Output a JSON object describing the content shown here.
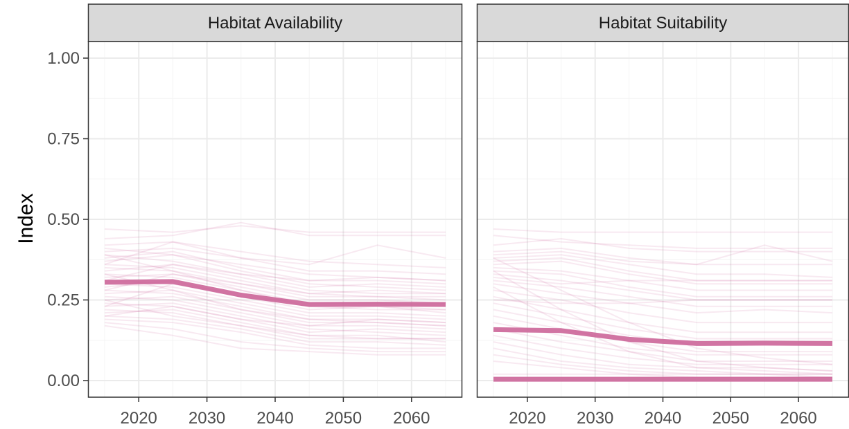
{
  "figure": {
    "ylabel": "Index",
    "colors": {
      "series": "#cc6699",
      "strip_bg": "#d9d9d9",
      "grid_major": "#ebebeb",
      "grid_minor": "#f4f4f4",
      "panel_border": "#333333"
    }
  },
  "chart_data": [
    {
      "type": "line",
      "panel": "Habitat Availability",
      "xlim": [
        2015,
        2065
      ],
      "ylim": [
        0,
        1
      ],
      "xticks": [
        2020,
        2030,
        2040,
        2050,
        2060
      ],
      "yticks": [
        0.0,
        0.25,
        0.5,
        0.75,
        1.0
      ],
      "ytick_labels": [
        "0.00",
        "0.25",
        "0.50",
        "0.75",
        "1.00"
      ],
      "x": [
        2015,
        2025,
        2035,
        2045,
        2055,
        2065
      ],
      "series": [
        {
          "role": "mean",
          "values": [
            0.305,
            0.307,
            0.265,
            0.236,
            0.237,
            0.236
          ]
        },
        {
          "role": "simulation",
          "values": [
            0.42,
            0.43,
            0.4,
            0.37,
            0.36,
            0.35
          ]
        },
        {
          "role": "simulation",
          "values": [
            0.41,
            0.39,
            0.36,
            0.33,
            0.32,
            0.31
          ]
        },
        {
          "role": "simulation",
          "values": [
            0.4,
            0.41,
            0.38,
            0.34,
            0.34,
            0.33
          ]
        },
        {
          "role": "simulation",
          "values": [
            0.39,
            0.37,
            0.33,
            0.29,
            0.3,
            0.29
          ]
        },
        {
          "role": "simulation",
          "values": [
            0.38,
            0.4,
            0.35,
            0.31,
            0.31,
            0.3
          ]
        },
        {
          "role": "simulation",
          "values": [
            0.37,
            0.39,
            0.34,
            0.3,
            0.29,
            0.28
          ]
        },
        {
          "role": "simulation",
          "values": [
            0.36,
            0.35,
            0.31,
            0.27,
            0.28,
            0.27
          ]
        },
        {
          "role": "simulation",
          "values": [
            0.35,
            0.34,
            0.3,
            0.26,
            0.26,
            0.25
          ]
        },
        {
          "role": "simulation",
          "values": [
            0.34,
            0.36,
            0.32,
            0.28,
            0.27,
            0.27
          ]
        },
        {
          "role": "simulation",
          "values": [
            0.33,
            0.32,
            0.28,
            0.24,
            0.24,
            0.23
          ]
        },
        {
          "role": "simulation",
          "values": [
            0.32,
            0.33,
            0.29,
            0.25,
            0.25,
            0.24
          ]
        },
        {
          "role": "simulation",
          "values": [
            0.31,
            0.3,
            0.27,
            0.23,
            0.23,
            0.22
          ]
        },
        {
          "role": "simulation",
          "values": [
            0.3,
            0.29,
            0.25,
            0.21,
            0.21,
            0.2
          ]
        },
        {
          "role": "simulation",
          "values": [
            0.29,
            0.31,
            0.26,
            0.22,
            0.23,
            0.21
          ]
        },
        {
          "role": "simulation",
          "values": [
            0.28,
            0.27,
            0.23,
            0.19,
            0.19,
            0.18
          ]
        },
        {
          "role": "simulation",
          "values": [
            0.27,
            0.28,
            0.24,
            0.2,
            0.2,
            0.19
          ]
        },
        {
          "role": "simulation",
          "values": [
            0.26,
            0.25,
            0.21,
            0.17,
            0.17,
            0.16
          ]
        },
        {
          "role": "simulation",
          "values": [
            0.25,
            0.26,
            0.22,
            0.18,
            0.18,
            0.17
          ]
        },
        {
          "role": "simulation",
          "values": [
            0.24,
            0.23,
            0.19,
            0.15,
            0.16,
            0.15
          ]
        },
        {
          "role": "simulation",
          "values": [
            0.23,
            0.24,
            0.2,
            0.16,
            0.15,
            0.14
          ]
        },
        {
          "role": "simulation",
          "values": [
            0.22,
            0.21,
            0.17,
            0.13,
            0.13,
            0.13
          ]
        },
        {
          "role": "simulation",
          "values": [
            0.21,
            0.22,
            0.18,
            0.14,
            0.14,
            0.12
          ]
        },
        {
          "role": "simulation",
          "values": [
            0.2,
            0.19,
            0.16,
            0.12,
            0.12,
            0.11
          ]
        },
        {
          "role": "simulation",
          "values": [
            0.19,
            0.18,
            0.15,
            0.11,
            0.1,
            0.1
          ]
        },
        {
          "role": "simulation",
          "values": [
            0.18,
            0.16,
            0.12,
            0.1,
            0.09,
            0.09
          ]
        },
        {
          "role": "simulation",
          "values": [
            0.17,
            0.14,
            0.1,
            0.09,
            0.08,
            0.08
          ]
        },
        {
          "role": "simulation",
          "values": [
            0.47,
            0.46,
            0.48,
            0.46,
            0.46,
            0.46
          ]
        },
        {
          "role": "simulation",
          "values": [
            0.44,
            0.45,
            0.49,
            0.45,
            0.45,
            0.45
          ]
        },
        {
          "role": "simulation",
          "values": [
            0.36,
            0.43,
            0.38,
            0.36,
            0.42,
            0.38
          ]
        },
        {
          "role": "simulation",
          "values": [
            0.28,
            0.33,
            0.3,
            0.27,
            0.26,
            0.26
          ]
        },
        {
          "role": "simulation",
          "values": [
            0.2,
            0.23,
            0.19,
            0.17,
            0.19,
            0.18
          ]
        },
        {
          "role": "simulation",
          "values": [
            0.33,
            0.28,
            0.22,
            0.19,
            0.18,
            0.17
          ]
        },
        {
          "role": "simulation",
          "values": [
            0.25,
            0.2,
            0.17,
            0.14,
            0.13,
            0.13
          ]
        },
        {
          "role": "simulation",
          "values": [
            0.39,
            0.34,
            0.28,
            0.23,
            0.22,
            0.22
          ]
        },
        {
          "role": "simulation",
          "values": [
            0.31,
            0.36,
            0.33,
            0.31,
            0.32,
            0.31
          ]
        },
        {
          "role": "simulation",
          "values": [
            0.23,
            0.3,
            0.26,
            0.24,
            0.24,
            0.24
          ]
        }
      ]
    },
    {
      "type": "line",
      "panel": "Habitat Suitability",
      "xlim": [
        2015,
        2065
      ],
      "ylim": [
        0,
        1
      ],
      "xticks": [
        2020,
        2030,
        2040,
        2050,
        2060
      ],
      "yticks": [
        0.0,
        0.25,
        0.5,
        0.75,
        1.0
      ],
      "x": [
        2015,
        2025,
        2035,
        2045,
        2055,
        2065
      ],
      "series": [
        {
          "role": "mean",
          "values": [
            0.158,
            0.155,
            0.128,
            0.115,
            0.116,
            0.115
          ]
        },
        {
          "role": "mean",
          "values": [
            0.004,
            0.004,
            0.004,
            0.004,
            0.004,
            0.004
          ]
        },
        {
          "role": "simulation",
          "values": [
            0.47,
            0.46,
            0.46,
            0.46,
            0.46,
            0.46
          ]
        },
        {
          "role": "simulation",
          "values": [
            0.42,
            0.44,
            0.41,
            0.4,
            0.4,
            0.4
          ]
        },
        {
          "role": "simulation",
          "values": [
            0.4,
            0.41,
            0.38,
            0.36,
            0.42,
            0.37
          ]
        },
        {
          "role": "simulation",
          "values": [
            0.38,
            0.39,
            0.36,
            0.33,
            0.33,
            0.32
          ]
        },
        {
          "role": "simulation",
          "values": [
            0.37,
            0.38,
            0.34,
            0.31,
            0.31,
            0.31
          ]
        },
        {
          "role": "simulation",
          "values": [
            0.36,
            0.37,
            0.33,
            0.3,
            0.3,
            0.3
          ]
        },
        {
          "role": "simulation",
          "values": [
            0.35,
            0.34,
            0.31,
            0.28,
            0.28,
            0.28
          ]
        },
        {
          "role": "simulation",
          "values": [
            0.34,
            0.33,
            0.29,
            0.26,
            0.26,
            0.26
          ]
        },
        {
          "role": "simulation",
          "values": [
            0.33,
            0.31,
            0.28,
            0.25,
            0.25,
            0.25
          ]
        },
        {
          "role": "simulation",
          "values": [
            0.31,
            0.29,
            0.26,
            0.23,
            0.23,
            0.23
          ]
        },
        {
          "role": "simulation",
          "values": [
            0.39,
            0.4,
            0.37,
            0.36,
            0.36,
            0.36
          ]
        },
        {
          "role": "simulation",
          "values": [
            0.3,
            0.27,
            0.24,
            0.21,
            0.22,
            0.21
          ]
        },
        {
          "role": "simulation",
          "values": [
            0.28,
            0.25,
            0.21,
            0.18,
            0.18,
            0.18
          ]
        },
        {
          "role": "simulation",
          "values": [
            0.26,
            0.22,
            0.18,
            0.15,
            0.15,
            0.15
          ]
        },
        {
          "role": "simulation",
          "values": [
            0.24,
            0.2,
            0.16,
            0.13,
            0.13,
            0.13
          ]
        },
        {
          "role": "simulation",
          "values": [
            0.22,
            0.18,
            0.14,
            0.11,
            0.11,
            0.11
          ]
        },
        {
          "role": "simulation",
          "values": [
            0.2,
            0.16,
            0.12,
            0.09,
            0.09,
            0.09
          ]
        },
        {
          "role": "simulation",
          "values": [
            0.18,
            0.14,
            0.1,
            0.08,
            0.08,
            0.08
          ]
        },
        {
          "role": "simulation",
          "values": [
            0.16,
            0.12,
            0.09,
            0.06,
            0.06,
            0.06
          ]
        },
        {
          "role": "simulation",
          "values": [
            0.14,
            0.1,
            0.07,
            0.05,
            0.05,
            0.05
          ]
        },
        {
          "role": "simulation",
          "values": [
            0.12,
            0.08,
            0.05,
            0.04,
            0.04,
            0.03
          ]
        },
        {
          "role": "simulation",
          "values": [
            0.1,
            0.06,
            0.04,
            0.03,
            0.02,
            0.02
          ]
        },
        {
          "role": "simulation",
          "values": [
            0.08,
            0.05,
            0.03,
            0.02,
            0.02,
            0.01
          ]
        },
        {
          "role": "simulation",
          "values": [
            0.06,
            0.04,
            0.02,
            0.01,
            0.01,
            0.01
          ]
        },
        {
          "role": "simulation",
          "values": [
            0.38,
            0.28,
            0.18,
            0.1,
            0.07,
            0.05
          ]
        },
        {
          "role": "simulation",
          "values": [
            0.34,
            0.22,
            0.12,
            0.06,
            0.04,
            0.03
          ]
        },
        {
          "role": "simulation",
          "values": [
            0.29,
            0.18,
            0.09,
            0.04,
            0.03,
            0.02
          ]
        },
        {
          "role": "simulation",
          "values": [
            0.02,
            0.02,
            0.02,
            0.02,
            0.02,
            0.02
          ]
        },
        {
          "role": "simulation",
          "values": [
            0.01,
            0.01,
            0.01,
            0.01,
            0.01,
            0.01
          ]
        },
        {
          "role": "simulation",
          "values": [
            0.32,
            0.3,
            0.31,
            0.31,
            0.31,
            0.31
          ]
        },
        {
          "role": "simulation",
          "values": [
            0.25,
            0.24,
            0.24,
            0.25,
            0.25,
            0.25
          ]
        },
        {
          "role": "simulation",
          "values": [
            0.45,
            0.43,
            0.42,
            0.41,
            0.41,
            0.41
          ]
        }
      ]
    }
  ]
}
